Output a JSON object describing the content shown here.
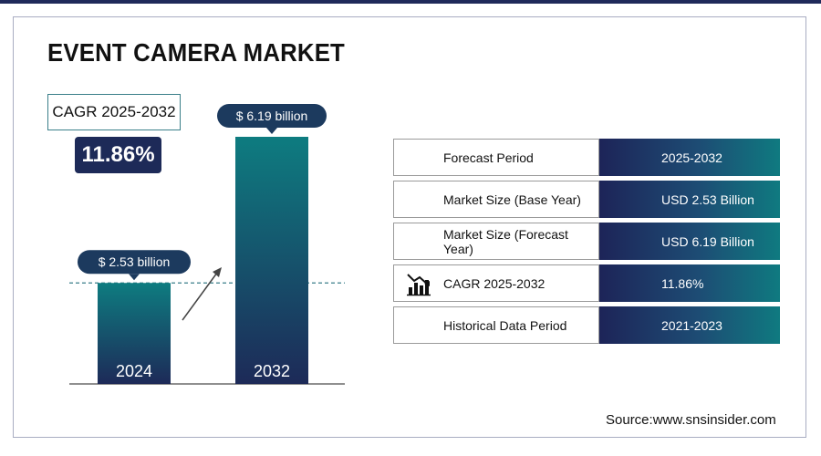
{
  "title": "EVENT CAMERA MARKET",
  "cagr": {
    "label": "CAGR 2025-2032",
    "value": "11.86%"
  },
  "chart_data": {
    "type": "bar",
    "categories": [
      "2024",
      "2032"
    ],
    "values": [
      2.53,
      6.19
    ],
    "data_labels": [
      "$ 2.53 billion",
      "$ 6.19 billion"
    ],
    "title": "",
    "xlabel": "",
    "ylabel": "",
    "ylim": [
      0,
      6.19
    ],
    "grid": false,
    "colors": {
      "bar_top": "#0e7c80",
      "bar_bottom": "#1d2a58",
      "callout": "#1c3a5e"
    }
  },
  "table": [
    {
      "label": "Forecast Period",
      "value": "2025-2032",
      "icon": ""
    },
    {
      "label": "Market Size (Base Year)",
      "value": "USD 2.53 Billion",
      "icon": ""
    },
    {
      "label": "Market Size (Forecast Year)",
      "value": "USD 6.19 Billion",
      "icon": ""
    },
    {
      "label": "CAGR 2025-2032",
      "value": "11.86%",
      "icon": "growth-chart-icon"
    },
    {
      "label": "Historical Data Period",
      "value": "2021-2023",
      "icon": ""
    }
  ],
  "source": "Source:www.snsinsider.com",
  "colors": {
    "navy": "#1d2a58",
    "teal": "#0e7c80"
  }
}
